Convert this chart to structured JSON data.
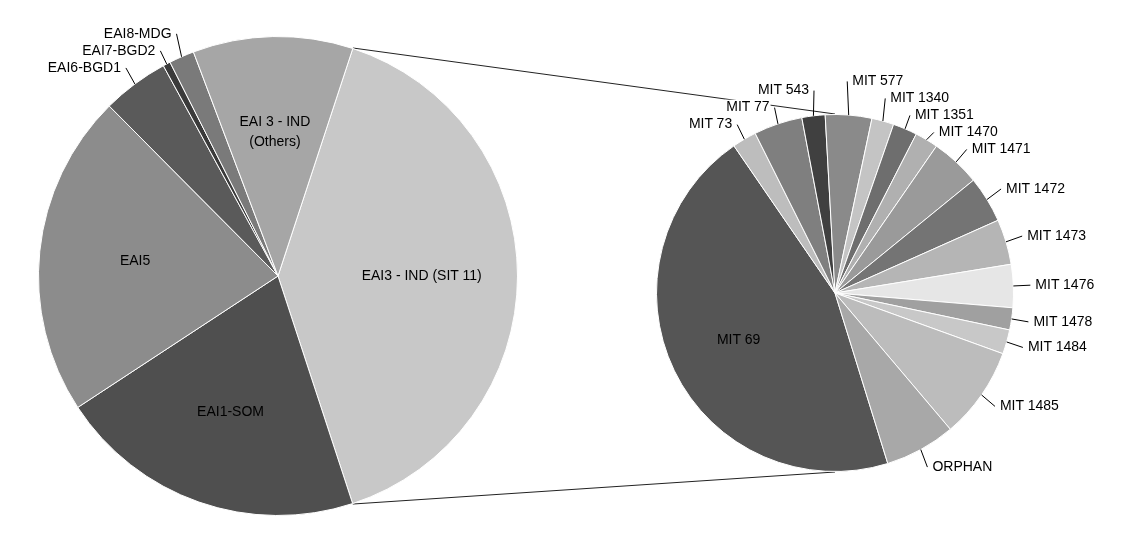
{
  "chart_data": [
    {
      "type": "pie",
      "categories": [
        "EAI3 - IND (SIT 11)",
        "EAI1-SOM",
        "EAI5",
        "EAI6-BGD1",
        "EAI7-BGD2",
        "EAI8-MDG",
        "EAI 3 - IND (Others)"
      ],
      "values": [
        39.9,
        20.8,
        21.8,
        4.5,
        0.5,
        1.7,
        10.8
      ],
      "colors": [
        "#c8c8c8",
        "#4f4f4f",
        "#8c8c8c",
        "#5a5a5a",
        "#3a3a3a",
        "#7a7a7a",
        "#a6a6a6"
      ]
    },
    {
      "type": "pie",
      "categories": [
        "MIT 69",
        "MIT 73",
        "MIT 77",
        "MIT 543",
        "MIT 577",
        "MIT 1340",
        "MIT 1351",
        "MIT 1470",
        "MIT 1471",
        "MIT 1472",
        "MIT 1473",
        "MIT 1476",
        "MIT 1478",
        "MIT 1484",
        "MIT 1485",
        "ORPHAN"
      ],
      "values": [
        45.2,
        2.2,
        4.4,
        2.1,
        4.2,
        2.0,
        2.2,
        2.1,
        4.5,
        4.2,
        4.1,
        3.9,
        2.0,
        2.2,
        8.3,
        6.4
      ],
      "colors": [
        "#555555",
        "#bdbdbd",
        "#7f7f7f",
        "#404040",
        "#8a8a8a",
        "#c4c4c4",
        "#6e6e6e",
        "#b0b0b0",
        "#9a9a9a",
        "#747474",
        "#b5b5b5",
        "#e6e6e6",
        "#a0a0a0",
        "#c8c8c8",
        "#bcbcbc",
        "#a8a8a8"
      ]
    }
  ]
}
